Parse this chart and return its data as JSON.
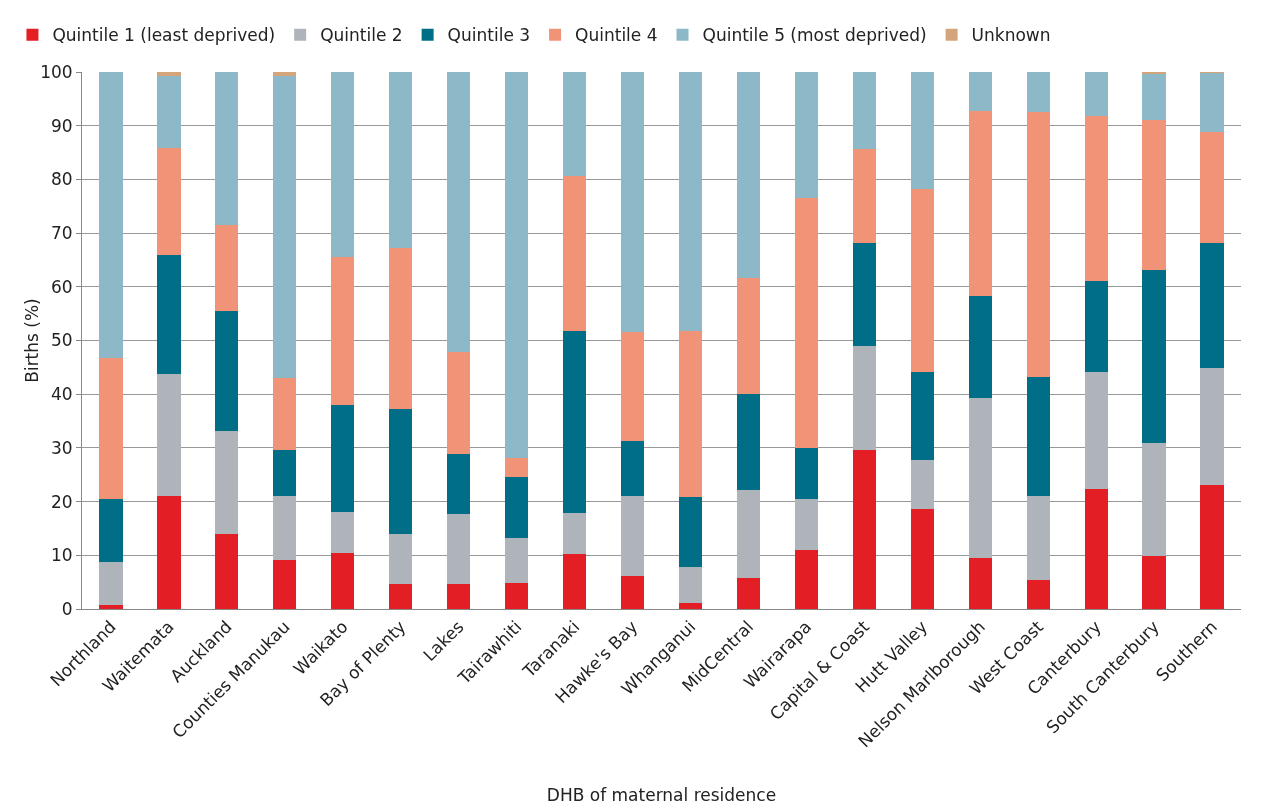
{
  "chart_data": {
    "type": "bar",
    "stacked": true,
    "xlabel": "DHB of maternal residence",
    "ylabel": "Births (%)",
    "categories": [
      "Northland",
      "Waitemata",
      "Auckland",
      "Counties Manukau",
      "Waikato",
      "Bay of Plenty",
      "Lakes",
      "Tairawhiti",
      "Taranaki",
      "Hawke's Bay",
      "Whanganui",
      "MidCentral",
      "Wairarapa",
      "Capital & Coast",
      "Hutt Valley",
      "Nelson Marlborough",
      "West Coast",
      "Canterbury",
      "South Canterbury",
      "Southern"
    ],
    "series": [
      {
        "name": "Quintile 1 (least deprived)",
        "color": "#e31e24",
        "values": [
          0.7,
          21,
          14,
          9.1,
          10.4,
          4.6,
          4.6,
          4.8,
          10.3,
          6.1,
          1.2,
          5.8,
          10.9,
          29.6,
          18.7,
          9.5,
          5.4,
          22.4,
          9.9,
          23
        ]
      },
      {
        "name": "Quintile 2",
        "color": "#aeb4ba",
        "values": [
          8.1,
          22.8,
          19.2,
          11.9,
          7.6,
          9.4,
          13.1,
          8.5,
          7.6,
          15,
          6.7,
          16.3,
          9.5,
          19.3,
          9,
          29.8,
          15.7,
          21.7,
          21.1,
          21.9
        ]
      },
      {
        "name": "Quintile 3",
        "color": "#006e87",
        "values": [
          11.7,
          22.1,
          22.3,
          8.6,
          20,
          23.3,
          11.2,
          11.2,
          33.8,
          10.1,
          13,
          17.9,
          9.6,
          19.2,
          16.5,
          18.9,
          22.1,
          16.9,
          32.2,
          23.2
        ]
      },
      {
        "name": "Quintile 4",
        "color": "#f09377",
        "values": [
          26.2,
          19.9,
          16,
          13.4,
          27.6,
          29.9,
          19,
          3.6,
          28.9,
          20.3,
          30.8,
          21.7,
          46.5,
          17.5,
          34.1,
          34.6,
          49.4,
          30.8,
          27.8,
          20.8
        ]
      },
      {
        "name": "Quintile 5 (most deprived)",
        "color": "#8cb8c8",
        "values": [
          53.3,
          13.5,
          28.5,
          56.2,
          34.4,
          32.8,
          52.1,
          71.9,
          19.4,
          48.5,
          48.3,
          38.3,
          23.5,
          14.4,
          21.7,
          7.2,
          7.4,
          8.2,
          8.8,
          11
        ]
      },
      {
        "name": "Unknown",
        "color": "#d4a57a",
        "values": [
          0,
          0.7,
          0,
          0.8,
          0,
          0,
          0,
          0,
          0,
          0,
          0,
          0,
          0,
          0,
          0,
          0,
          0,
          0,
          0.2,
          0.1
        ]
      }
    ],
    "ylim": [
      0,
      100
    ],
    "yticks": [
      0,
      10,
      20,
      30,
      40,
      50,
      60,
      70,
      80,
      90,
      100
    ],
    "grid": "y",
    "legend": "top"
  }
}
